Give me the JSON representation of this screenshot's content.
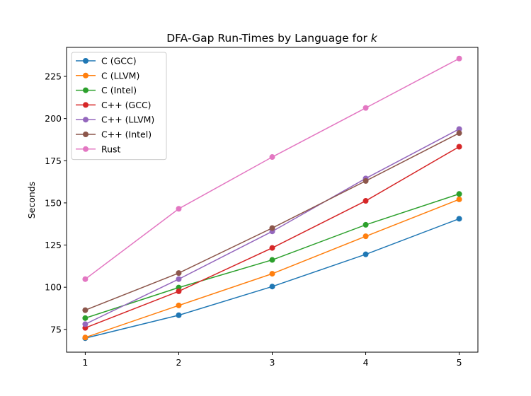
{
  "chart_data": {
    "type": "line",
    "title": "DFA-Gap Run-Times by Language for",
    "title_italic": "k",
    "xlabel": "",
    "ylabel": "Seconds",
    "x": [
      1,
      2,
      3,
      4,
      5
    ],
    "x_ticks": [
      "1",
      "2",
      "3",
      "4",
      "5"
    ],
    "y_ticks": [
      "75",
      "100",
      "125",
      "150",
      "175",
      "200",
      "225"
    ],
    "xlim": [
      0.8,
      5.2
    ],
    "ylim": [
      61.5,
      242.2
    ],
    "grid": false,
    "legend_position": "upper-left",
    "series": [
      {
        "name": "C (GCC)",
        "color": "#1f77b4",
        "values": [
          69.8,
          83.4,
          100.4,
          119.5,
          140.6
        ]
      },
      {
        "name": "C (LLVM)",
        "color": "#ff7f0e",
        "values": [
          70.2,
          89.2,
          108.0,
          130.2,
          152.1
        ]
      },
      {
        "name": "C (Intel)",
        "color": "#2ca02c",
        "values": [
          81.7,
          99.8,
          116.2,
          137.0,
          155.3
        ]
      },
      {
        "name": "C++ (GCC)",
        "color": "#d62728",
        "values": [
          75.9,
          97.6,
          123.3,
          151.2,
          183.3
        ]
      },
      {
        "name": "C++ (LLVM)",
        "color": "#9467bd",
        "values": [
          78.1,
          104.8,
          133.1,
          164.5,
          193.8
        ]
      },
      {
        "name": "C++ (Intel)",
        "color": "#8c564b",
        "values": [
          86.4,
          108.4,
          135.1,
          163.0,
          191.4
        ]
      },
      {
        "name": "Rust",
        "color": "#e377c2",
        "values": [
          104.8,
          146.5,
          177.2,
          206.3,
          235.6
        ]
      }
    ]
  }
}
